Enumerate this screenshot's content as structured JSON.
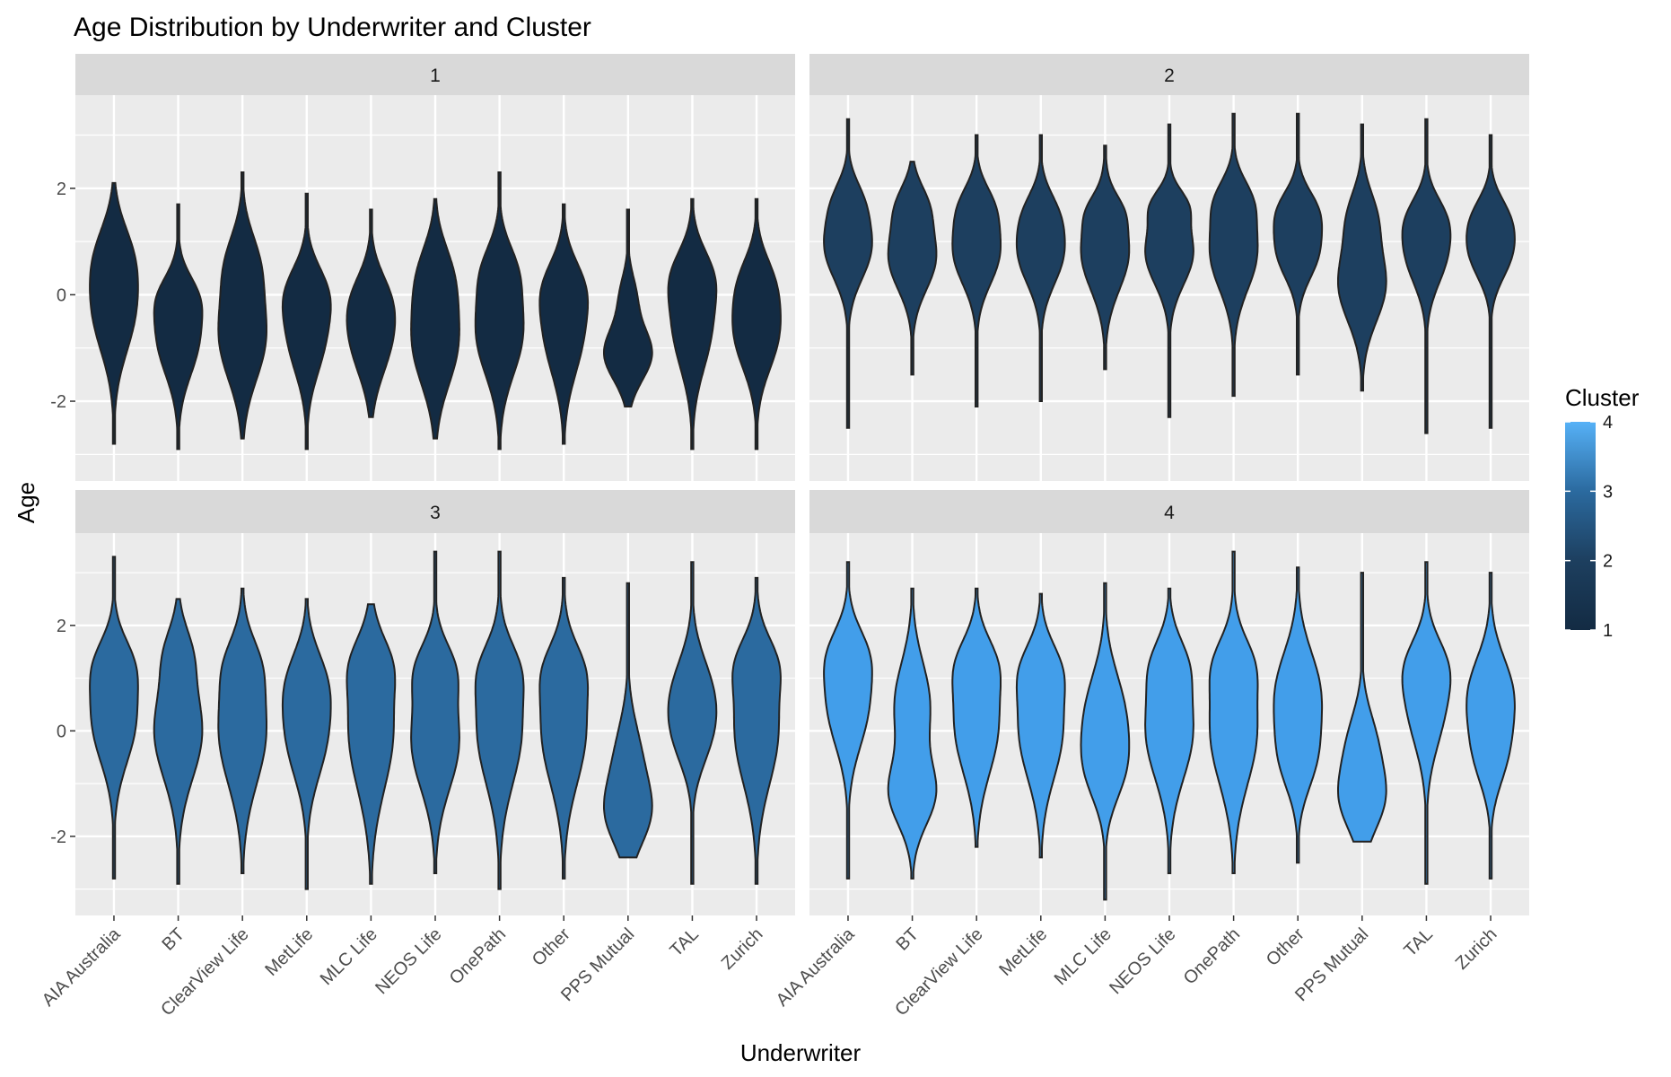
{
  "chart_data": {
    "type": "violin",
    "title": "Age Distribution by Underwriter and Cluster",
    "xlabel": "Underwriter",
    "ylabel": "Age",
    "ylim": [
      -3.5,
      3.75
    ],
    "yticks": [
      -2,
      0,
      2
    ],
    "grid": true,
    "facet_by": "Cluster",
    "categories": [
      "AIA Australia",
      "BT",
      "ClearView Life",
      "MetLife",
      "MLC Life",
      "NEOS Life",
      "OnePath",
      "Other",
      "PPS Mutual",
      "TAL",
      "Zurich"
    ],
    "legend": {
      "title": "Cluster",
      "position": "right",
      "type": "colorbar",
      "ticks": [
        "1",
        "2",
        "3",
        "4"
      ],
      "colors": [
        "#132B43",
        "#1D3F5F",
        "#2B6A9F",
        "#56B1F7"
      ]
    },
    "panels": [
      {
        "label": "1",
        "cluster": 1,
        "fill": "#132B43",
        "violins": [
          {
            "min": -2.8,
            "max": 2.1,
            "max_width": 0.75,
            "peaks": [
              [
                -0.3,
                1.0,
                0.8
              ],
              [
                0.8,
                0.6,
                0.6
              ]
            ]
          },
          {
            "min": -2.9,
            "max": 1.7,
            "max_width": 0.75,
            "peaks": [
              [
                -0.8,
                1.0,
                0.7
              ],
              [
                0.0,
                0.5,
                0.4
              ]
            ]
          },
          {
            "min": -2.7,
            "max": 2.3,
            "max_width": 0.75,
            "peaks": [
              [
                -0.8,
                1.0,
                0.8
              ],
              [
                0.6,
                0.6,
                0.6
              ]
            ]
          },
          {
            "min": -2.9,
            "max": 1.9,
            "max_width": 0.75,
            "peaks": [
              [
                -0.8,
                1.0,
                0.7
              ],
              [
                0.1,
                0.8,
                0.5
              ]
            ]
          },
          {
            "min": -2.3,
            "max": 1.6,
            "max_width": 0.75,
            "peaks": [
              [
                -0.8,
                1.0,
                0.7
              ],
              [
                0.0,
                0.5,
                0.5
              ]
            ]
          },
          {
            "min": -2.7,
            "max": 1.8,
            "max_width": 0.75,
            "peaks": [
              [
                -0.9,
                1.0,
                0.8
              ],
              [
                0.4,
                0.6,
                0.6
              ]
            ]
          },
          {
            "min": -2.9,
            "max": 2.3,
            "max_width": 0.75,
            "peaks": [
              [
                -0.7,
                1.0,
                0.8
              ],
              [
                0.5,
                0.5,
                0.5
              ]
            ]
          },
          {
            "min": -2.8,
            "max": 1.7,
            "max_width": 0.75,
            "peaks": [
              [
                -0.7,
                1.0,
                0.8
              ],
              [
                0.2,
                0.6,
                0.5
              ]
            ]
          },
          {
            "min": -2.1,
            "max": 1.6,
            "max_width": 0.75,
            "peaks": [
              [
                -1.1,
                1.0,
                0.5
              ],
              [
                0.0,
                0.3,
                0.4
              ]
            ]
          },
          {
            "min": -2.9,
            "max": 1.8,
            "max_width": 0.75,
            "peaks": [
              [
                -0.6,
                1.0,
                0.8
              ],
              [
                0.4,
                0.7,
                0.5
              ]
            ]
          },
          {
            "min": -2.9,
            "max": 1.8,
            "max_width": 0.75,
            "peaks": [
              [
                -0.7,
                1.0,
                0.7
              ],
              [
                0.3,
                0.5,
                0.5
              ]
            ]
          }
        ]
      },
      {
        "label": "2",
        "cluster": 2,
        "fill": "#1D3F5F",
        "violins": [
          {
            "min": -2.5,
            "max": 3.3,
            "max_width": 0.75,
            "peaks": [
              [
                0.9,
                1.0,
                0.6
              ],
              [
                1.8,
                0.4,
                0.4
              ]
            ]
          },
          {
            "min": -1.5,
            "max": 2.5,
            "max_width": 0.75,
            "peaks": [
              [
                0.7,
                1.0,
                0.6
              ],
              [
                1.7,
                0.5,
                0.4
              ]
            ]
          },
          {
            "min": -2.1,
            "max": 3.0,
            "max_width": 0.75,
            "peaks": [
              [
                0.8,
                1.0,
                0.6
              ],
              [
                1.7,
                0.5,
                0.4
              ]
            ]
          },
          {
            "min": -2.0,
            "max": 3.0,
            "max_width": 0.75,
            "peaks": [
              [
                0.8,
                1.0,
                0.6
              ],
              [
                1.6,
                0.4,
                0.4
              ]
            ]
          },
          {
            "min": -1.4,
            "max": 2.8,
            "max_width": 0.75,
            "peaks": [
              [
                0.8,
                1.0,
                0.7
              ],
              [
                1.6,
                0.3,
                0.3
              ]
            ]
          },
          {
            "min": -2.3,
            "max": 3.2,
            "max_width": 0.75,
            "peaks": [
              [
                0.8,
                1.0,
                0.6
              ],
              [
                1.7,
                0.5,
                0.3
              ]
            ]
          },
          {
            "min": -1.9,
            "max": 3.4,
            "max_width": 0.75,
            "peaks": [
              [
                0.8,
                1.0,
                0.7
              ],
              [
                1.8,
                0.5,
                0.4
              ]
            ]
          },
          {
            "min": -1.5,
            "max": 3.4,
            "max_width": 0.75,
            "peaks": [
              [
                0.8,
                1.0,
                0.5
              ],
              [
                1.6,
                0.8,
                0.4
              ]
            ]
          },
          {
            "min": -1.8,
            "max": 3.2,
            "max_width": 0.75,
            "peaks": [
              [
                0.2,
                1.0,
                0.7
              ],
              [
                1.5,
                0.5,
                0.5
              ]
            ]
          },
          {
            "min": -2.6,
            "max": 3.3,
            "max_width": 0.75,
            "peaks": [
              [
                0.8,
                1.0,
                0.6
              ],
              [
                1.5,
                0.5,
                0.4
              ]
            ]
          },
          {
            "min": -2.5,
            "max": 3.0,
            "max_width": 0.75,
            "peaks": [
              [
                0.8,
                1.0,
                0.5
              ],
              [
                1.5,
                0.6,
                0.4
              ]
            ]
          }
        ]
      },
      {
        "label": "3",
        "cluster": 3,
        "fill": "#2B6A9F",
        "violins": [
          {
            "min": -2.8,
            "max": 3.3,
            "max_width": 0.75,
            "peaks": [
              [
                0.2,
                1.0,
                0.8
              ],
              [
                1.3,
                0.6,
                0.5
              ]
            ]
          },
          {
            "min": -2.9,
            "max": 2.5,
            "max_width": 0.75,
            "peaks": [
              [
                0.0,
                1.0,
                0.9
              ],
              [
                1.5,
                0.4,
                0.5
              ]
            ]
          },
          {
            "min": -2.7,
            "max": 2.7,
            "max_width": 0.75,
            "peaks": [
              [
                0.0,
                1.0,
                1.0
              ],
              [
                1.3,
                0.4,
                0.5
              ]
            ]
          },
          {
            "min": -3.0,
            "max": 2.5,
            "max_width": 0.75,
            "peaks": [
              [
                -0.1,
                1.0,
                0.8
              ],
              [
                1.0,
                0.7,
                0.6
              ]
            ]
          },
          {
            "min": -2.9,
            "max": 2.4,
            "max_width": 0.75,
            "peaks": [
              [
                0.0,
                1.0,
                1.1
              ],
              [
                1.3,
                0.5,
                0.5
              ]
            ]
          },
          {
            "min": -2.7,
            "max": 3.4,
            "max_width": 0.75,
            "peaks": [
              [
                -0.2,
                1.0,
                0.9
              ],
              [
                1.2,
                0.6,
                0.5
              ]
            ]
          },
          {
            "min": -3.0,
            "max": 3.4,
            "max_width": 0.75,
            "peaks": [
              [
                0.0,
                1.0,
                1.0
              ],
              [
                1.2,
                0.5,
                0.5
              ]
            ]
          },
          {
            "min": -2.8,
            "max": 2.9,
            "max_width": 0.75,
            "peaks": [
              [
                0.0,
                1.0,
                1.0
              ],
              [
                1.2,
                0.5,
                0.5
              ]
            ]
          },
          {
            "min": -2.4,
            "max": 2.8,
            "max_width": 0.75,
            "peaks": [
              [
                -1.6,
                1.0,
                0.6
              ],
              [
                -0.5,
                0.6,
                0.7
              ]
            ]
          },
          {
            "min": -2.9,
            "max": 3.2,
            "max_width": 0.75,
            "peaks": [
              [
                0.7,
                1.0,
                0.7
              ],
              [
                -0.2,
                0.6,
                0.6
              ]
            ]
          },
          {
            "min": -2.9,
            "max": 2.9,
            "max_width": 0.75,
            "peaks": [
              [
                0.0,
                1.0,
                1.0
              ],
              [
                1.3,
                0.6,
                0.5
              ]
            ]
          }
        ]
      },
      {
        "label": "4",
        "cluster": 4,
        "fill": "#429EEA",
        "violins": [
          {
            "min": -2.8,
            "max": 3.2,
            "max_width": 0.75,
            "peaks": [
              [
                0.5,
                1.0,
                0.8
              ],
              [
                1.5,
                0.6,
                0.5
              ]
            ]
          },
          {
            "min": -2.8,
            "max": 2.7,
            "max_width": 0.75,
            "peaks": [
              [
                -1.2,
                1.0,
                0.6
              ],
              [
                0.5,
                0.8,
                0.8
              ]
            ]
          },
          {
            "min": -2.2,
            "max": 2.7,
            "max_width": 0.75,
            "peaks": [
              [
                0.1,
                1.0,
                0.9
              ],
              [
                1.3,
                0.6,
                0.5
              ]
            ]
          },
          {
            "min": -2.4,
            "max": 2.6,
            "max_width": 0.75,
            "peaks": [
              [
                0.0,
                1.0,
                0.9
              ],
              [
                1.2,
                0.6,
                0.5
              ]
            ]
          },
          {
            "min": -3.2,
            "max": 2.8,
            "max_width": 0.75,
            "peaks": [
              [
                0.3,
                1.0,
                0.8
              ],
              [
                -0.8,
                0.7,
                0.6
              ]
            ]
          },
          {
            "min": -2.7,
            "max": 2.7,
            "max_width": 0.75,
            "peaks": [
              [
                0.0,
                1.0,
                0.9
              ],
              [
                1.3,
                0.5,
                0.5
              ]
            ]
          },
          {
            "min": -2.7,
            "max": 3.4,
            "max_width": 0.75,
            "peaks": [
              [
                0.0,
                1.0,
                1.0
              ],
              [
                1.3,
                0.5,
                0.5
              ]
            ]
          },
          {
            "min": -2.5,
            "max": 3.1,
            "max_width": 0.75,
            "peaks": [
              [
                0.7,
                1.0,
                0.8
              ],
              [
                -0.6,
                0.6,
                0.6
              ]
            ]
          },
          {
            "min": -2.1,
            "max": 3.0,
            "max_width": 0.75,
            "peaks": [
              [
                -1.3,
                1.0,
                0.6
              ],
              [
                -0.2,
                0.6,
                0.6
              ]
            ]
          },
          {
            "min": -2.9,
            "max": 3.2,
            "max_width": 0.75,
            "peaks": [
              [
                0.5,
                1.0,
                0.8
              ],
              [
                1.3,
                0.6,
                0.5
              ]
            ]
          },
          {
            "min": -2.8,
            "max": 3.0,
            "max_width": 0.75,
            "peaks": [
              [
                0.7,
                1.0,
                0.7
              ],
              [
                -0.5,
                0.6,
                0.6
              ]
            ]
          }
        ]
      }
    ]
  }
}
